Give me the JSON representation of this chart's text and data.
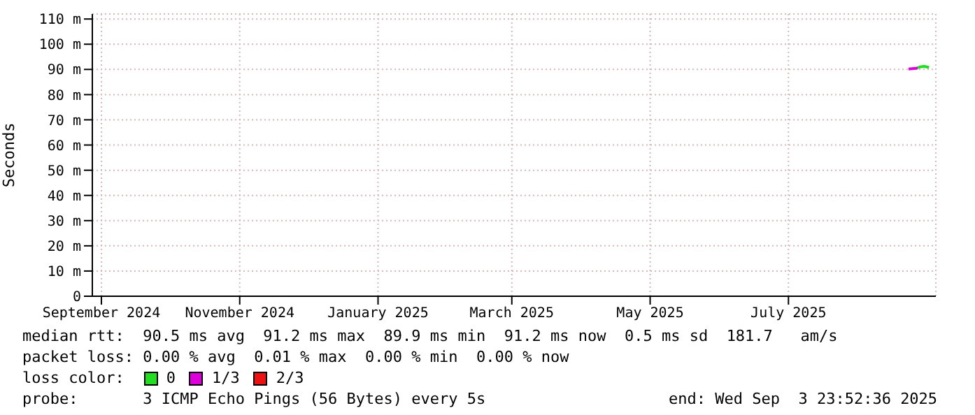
{
  "chart_data": {
    "type": "line",
    "ylabel": "Seconds",
    "xlim": [
      "2024-08-28T00:00",
      "2025-09-03T23:52"
    ],
    "xticks": [
      {
        "value": "2024-09-01",
        "label": "September 2024"
      },
      {
        "value": "2024-11-01",
        "label": "November 2024"
      },
      {
        "value": "2025-01-01",
        "label": "January 2025"
      },
      {
        "value": "2025-03-01",
        "label": "March 2025"
      },
      {
        "value": "2025-05-01",
        "label": "May 2025"
      },
      {
        "value": "2025-07-01",
        "label": "July 2025"
      }
    ],
    "ylim": [
      0,
      112
    ],
    "yticks": [
      {
        "value": 0,
        "label": "0"
      },
      {
        "value": 10,
        "label": "10 m"
      },
      {
        "value": 20,
        "label": "20 m"
      },
      {
        "value": 30,
        "label": "30 m"
      },
      {
        "value": 40,
        "label": "40 m"
      },
      {
        "value": 50,
        "label": "50 m"
      },
      {
        "value": 60,
        "label": "60 m"
      },
      {
        "value": 70,
        "label": "70 m"
      },
      {
        "value": 80,
        "label": "80 m"
      },
      {
        "value": 90,
        "label": "90 m"
      },
      {
        "value": 100,
        "label": "100 m"
      },
      {
        "value": 110,
        "label": "110 m"
      }
    ],
    "grid": true,
    "marker": "none",
    "legend": "bottom",
    "legend_title": "loss color:",
    "series": [
      {
        "name": "0",
        "color": "#22dd22",
        "x": [
          "2025-08-27",
          "2025-08-28",
          "2025-08-30",
          "2025-09-01"
        ],
        "values": [
          90.6,
          91.0,
          91.2,
          90.8
        ]
      },
      {
        "name": "1/3",
        "color": "#dd00dd",
        "x": [
          "2025-08-23",
          "2025-08-27"
        ],
        "values": [
          90.2,
          90.5
        ]
      },
      {
        "name": "2/3",
        "color": "#ee1111"
      }
    ],
    "annotations": [
      "median rtt:  90.5 ms avg  91.2 ms max  89.9 ms min  91.2 ms now  0.5 ms sd  181.7   am/s",
      "packet loss: 0.00 % avg  0.01 % max  0.00 % min  0.00 % now",
      "probe:       3 ICMP Echo Pings (56 Bytes) every 5s",
      "end: Wed Sep  3 23:52:36 2025"
    ]
  }
}
